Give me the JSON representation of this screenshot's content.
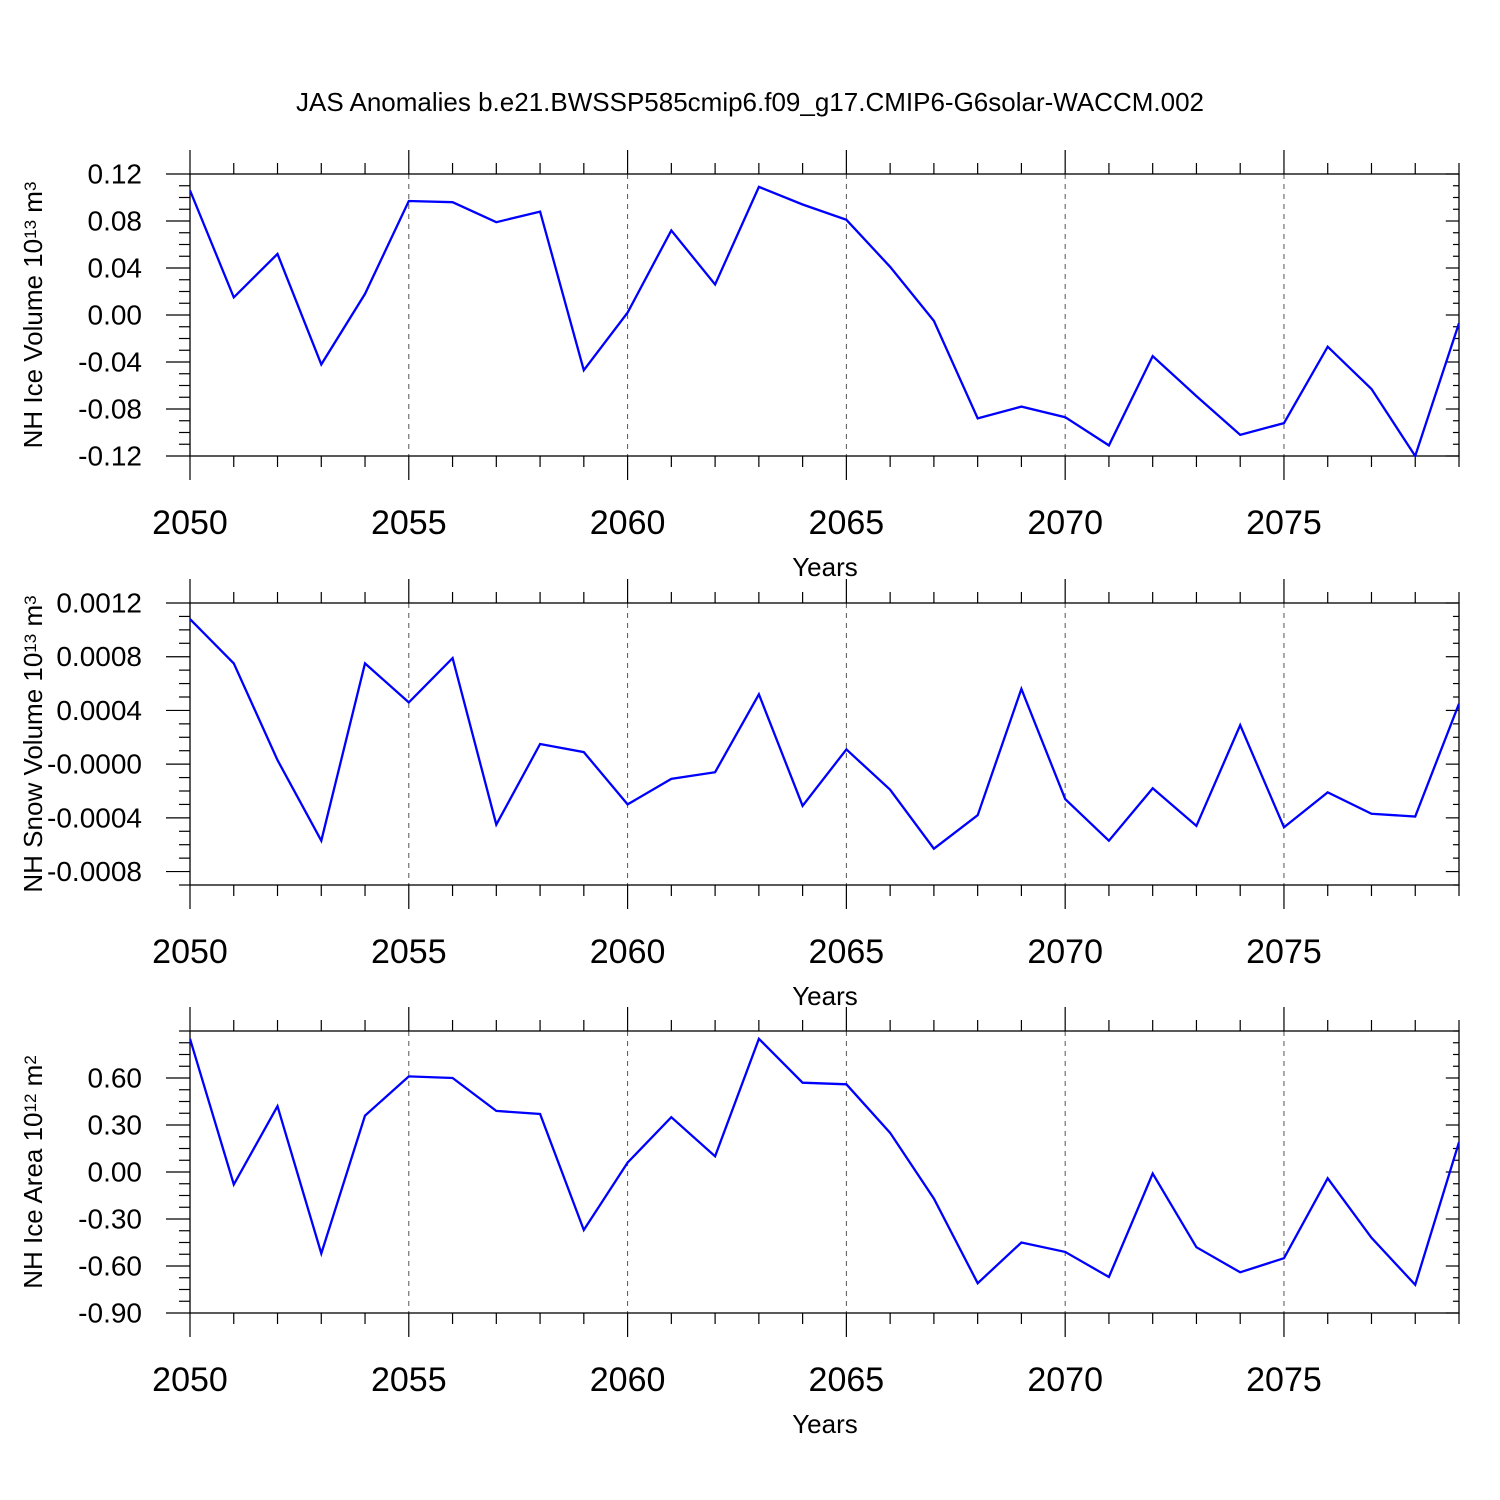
{
  "title": "JAS Anomalies b.e21.BWSSP585cmip6.f09_g17.CMIP6-G6solar-WACCM.002",
  "colors": {
    "line": "#0000ff",
    "axis": "#000000",
    "grid": "#555555"
  },
  "chart_data": [
    {
      "type": "line",
      "xlabel": "Years",
      "ylabel": "NH Ice Volume 10",
      "ylabel_exponent": "13",
      "ylabel_unit": "m",
      "ylabel_unit_exponent": "3",
      "xlim": [
        2050,
        2079
      ],
      "ylim": [
        -0.12,
        0.12
      ],
      "x_major_ticks": [
        2050,
        2055,
        2060,
        2065,
        2070,
        2075
      ],
      "y_ticks": [
        0.12,
        0.08,
        0.04,
        0.0,
        -0.04,
        -0.08,
        -0.12
      ],
      "y_tick_labels": [
        "0.12",
        "0.08",
        "0.04",
        "0.00",
        "-0.04",
        "-0.08",
        "-0.12"
      ],
      "x": [
        2050,
        2051,
        2052,
        2053,
        2054,
        2055,
        2056,
        2057,
        2058,
        2059,
        2060,
        2061,
        2062,
        2063,
        2064,
        2065,
        2066,
        2067,
        2068,
        2069,
        2070,
        2071,
        2072,
        2073,
        2074,
        2075,
        2076,
        2077,
        2078,
        2079
      ],
      "values": [
        0.106,
        0.015,
        0.052,
        -0.042,
        0.018,
        0.097,
        0.096,
        0.079,
        0.088,
        -0.047,
        0.002,
        0.072,
        0.026,
        0.109,
        0.094,
        0.081,
        0.041,
        -0.005,
        -0.088,
        -0.078,
        -0.087,
        -0.111,
        -0.035,
        -0.069,
        -0.102,
        -0.092,
        -0.027,
        -0.063,
        -0.12,
        -0.007
      ],
      "grid": "dashed vertical at major x ticks"
    },
    {
      "type": "line",
      "xlabel": "Years",
      "ylabel": "NH Snow Volume 10",
      "ylabel_exponent": "13",
      "ylabel_unit": "m",
      "ylabel_unit_exponent": "3",
      "xlim": [
        2050,
        2079
      ],
      "ylim": [
        -0.0009,
        0.0012
      ],
      "x_major_ticks": [
        2050,
        2055,
        2060,
        2065,
        2070,
        2075
      ],
      "y_ticks": [
        0.0012,
        0.0008,
        0.0004,
        0.0,
        -0.0004,
        -0.0008
      ],
      "y_tick_labels": [
        "0.0012",
        "0.0008",
        "0.0004",
        "-0.0000",
        "-0.0004",
        "-0.0008"
      ],
      "x": [
        2050,
        2051,
        2052,
        2053,
        2054,
        2055,
        2056,
        2057,
        2058,
        2059,
        2060,
        2061,
        2062,
        2063,
        2064,
        2065,
        2066,
        2067,
        2068,
        2069,
        2070,
        2071,
        2072,
        2073,
        2074,
        2075,
        2076,
        2077,
        2078,
        2079
      ],
      "values": [
        0.00108,
        0.00075,
        3e-05,
        -0.00057,
        0.00075,
        0.00046,
        0.00079,
        -0.00045,
        0.00015,
        9e-05,
        -0.0003,
        -0.00011,
        -6e-05,
        0.00052,
        -0.00031,
        0.00011,
        -0.00019,
        -0.00063,
        -0.00038,
        0.00056,
        -0.00026,
        -0.00057,
        -0.00018,
        -0.00046,
        0.00029,
        -0.00047,
        -0.00021,
        -0.00037,
        -0.00039,
        0.00045
      ],
      "grid": "dashed vertical at major x ticks"
    },
    {
      "type": "line",
      "xlabel": "Years",
      "ylabel": "NH Ice Area 10",
      "ylabel_exponent": "12",
      "ylabel_unit": "m",
      "ylabel_unit_exponent": "2",
      "xlim": [
        2050,
        2079
      ],
      "ylim": [
        -0.9,
        0.9
      ],
      "x_major_ticks": [
        2050,
        2055,
        2060,
        2065,
        2070,
        2075
      ],
      "y_ticks": [
        0.6,
        0.3,
        0.0,
        -0.3,
        -0.6,
        -0.9
      ],
      "y_tick_labels": [
        "0.60",
        "0.30",
        "0.00",
        "-0.30",
        "-0.60",
        "-0.90"
      ],
      "x": [
        2050,
        2051,
        2052,
        2053,
        2054,
        2055,
        2056,
        2057,
        2058,
        2059,
        2060,
        2061,
        2062,
        2063,
        2064,
        2065,
        2066,
        2067,
        2068,
        2069,
        2070,
        2071,
        2072,
        2073,
        2074,
        2075,
        2076,
        2077,
        2078,
        2079
      ],
      "values": [
        0.85,
        -0.08,
        0.42,
        -0.52,
        0.36,
        0.61,
        0.6,
        0.39,
        0.37,
        -0.37,
        0.06,
        0.35,
        0.1,
        0.85,
        0.57,
        0.56,
        0.25,
        -0.17,
        -0.71,
        -0.45,
        -0.51,
        -0.67,
        -0.01,
        -0.48,
        -0.64,
        -0.55,
        -0.04,
        -0.42,
        -0.72,
        0.19
      ],
      "grid": "dashed vertical at major x ticks"
    }
  ]
}
